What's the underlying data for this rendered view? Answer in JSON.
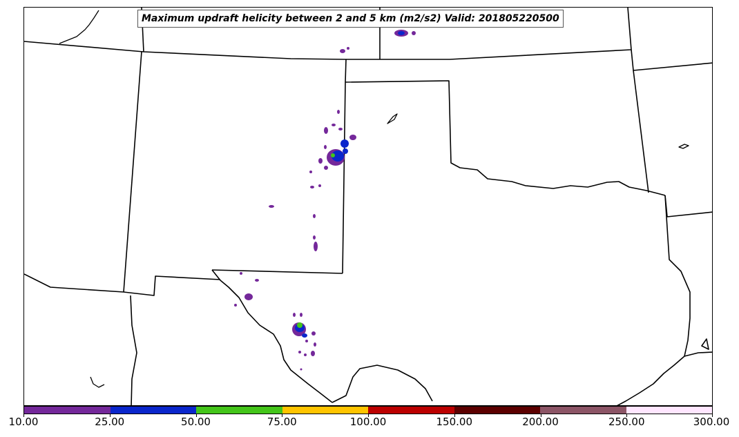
{
  "title": "Maximum updraft helicity between 2 and 5 km (m2/s2) Valid: 201805220500",
  "colorbar": {
    "labels": [
      "10.00",
      "25.00",
      "50.00",
      "75.00",
      "100.00",
      "150.00",
      "200.00",
      "250.00",
      "300.00"
    ],
    "colors": [
      "#74289a",
      "#0a26cc",
      "#44c51a",
      "#ffc400",
      "#bb0000",
      "#5c0000",
      "#8c5566",
      "#ffe6ff"
    ]
  },
  "map": {
    "boundary_color": "#000000",
    "storm_colors": {
      "low": "#74289a",
      "mid": "#0a26cc",
      "high": "#44c51a"
    }
  }
}
